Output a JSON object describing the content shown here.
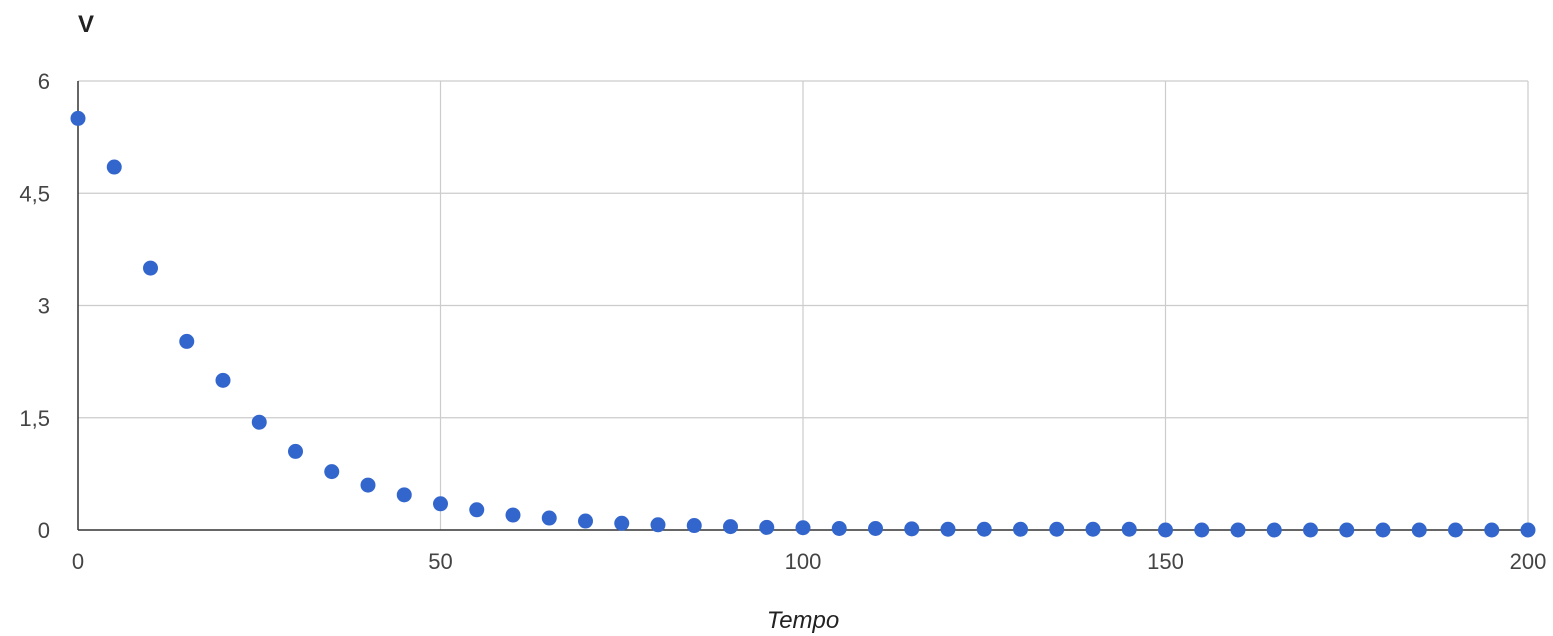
{
  "chart_data": {
    "type": "scatter",
    "title": "",
    "ylabel": "V",
    "xlabel": "Tempo",
    "xlim": [
      0,
      200
    ],
    "ylim": [
      0,
      6
    ],
    "xticks": [
      0,
      50,
      100,
      150,
      200
    ],
    "xtick_labels": [
      "0",
      "50",
      "100",
      "150",
      "200"
    ],
    "yticks": [
      0,
      1.5,
      3,
      4.5,
      6
    ],
    "ytick_labels": [
      "0",
      "1,5",
      "3",
      "4,5",
      "6"
    ],
    "grid": true,
    "legend": "none",
    "series": [
      {
        "color": "#3366cc",
        "points": [
          [
            0,
            5.5
          ],
          [
            5,
            4.85
          ],
          [
            10,
            3.5
          ],
          [
            15,
            2.52
          ],
          [
            20,
            2.0
          ],
          [
            25,
            1.44
          ],
          [
            30,
            1.05
          ],
          [
            35,
            0.78
          ],
          [
            40,
            0.6
          ],
          [
            45,
            0.47
          ],
          [
            50,
            0.35
          ],
          [
            55,
            0.27
          ],
          [
            60,
            0.2
          ],
          [
            65,
            0.16
          ],
          [
            70,
            0.12
          ],
          [
            75,
            0.09
          ],
          [
            80,
            0.07
          ],
          [
            85,
            0.06
          ],
          [
            90,
            0.045
          ],
          [
            95,
            0.035
          ],
          [
            100,
            0.03
          ],
          [
            105,
            0.02
          ],
          [
            110,
            0.02
          ],
          [
            115,
            0.015
          ],
          [
            120,
            0.01
          ],
          [
            125,
            0.01
          ],
          [
            130,
            0.01
          ],
          [
            135,
            0.01
          ],
          [
            140,
            0.01
          ],
          [
            145,
            0.01
          ],
          [
            150,
            0.0
          ],
          [
            155,
            0.0
          ],
          [
            160,
            0.0
          ],
          [
            165,
            0.0
          ],
          [
            170,
            0.0
          ],
          [
            175,
            0.0
          ],
          [
            180,
            0.0
          ],
          [
            185,
            0.0
          ],
          [
            190,
            0.0
          ],
          [
            195,
            0.0
          ],
          [
            200,
            0.0
          ]
        ]
      }
    ]
  }
}
